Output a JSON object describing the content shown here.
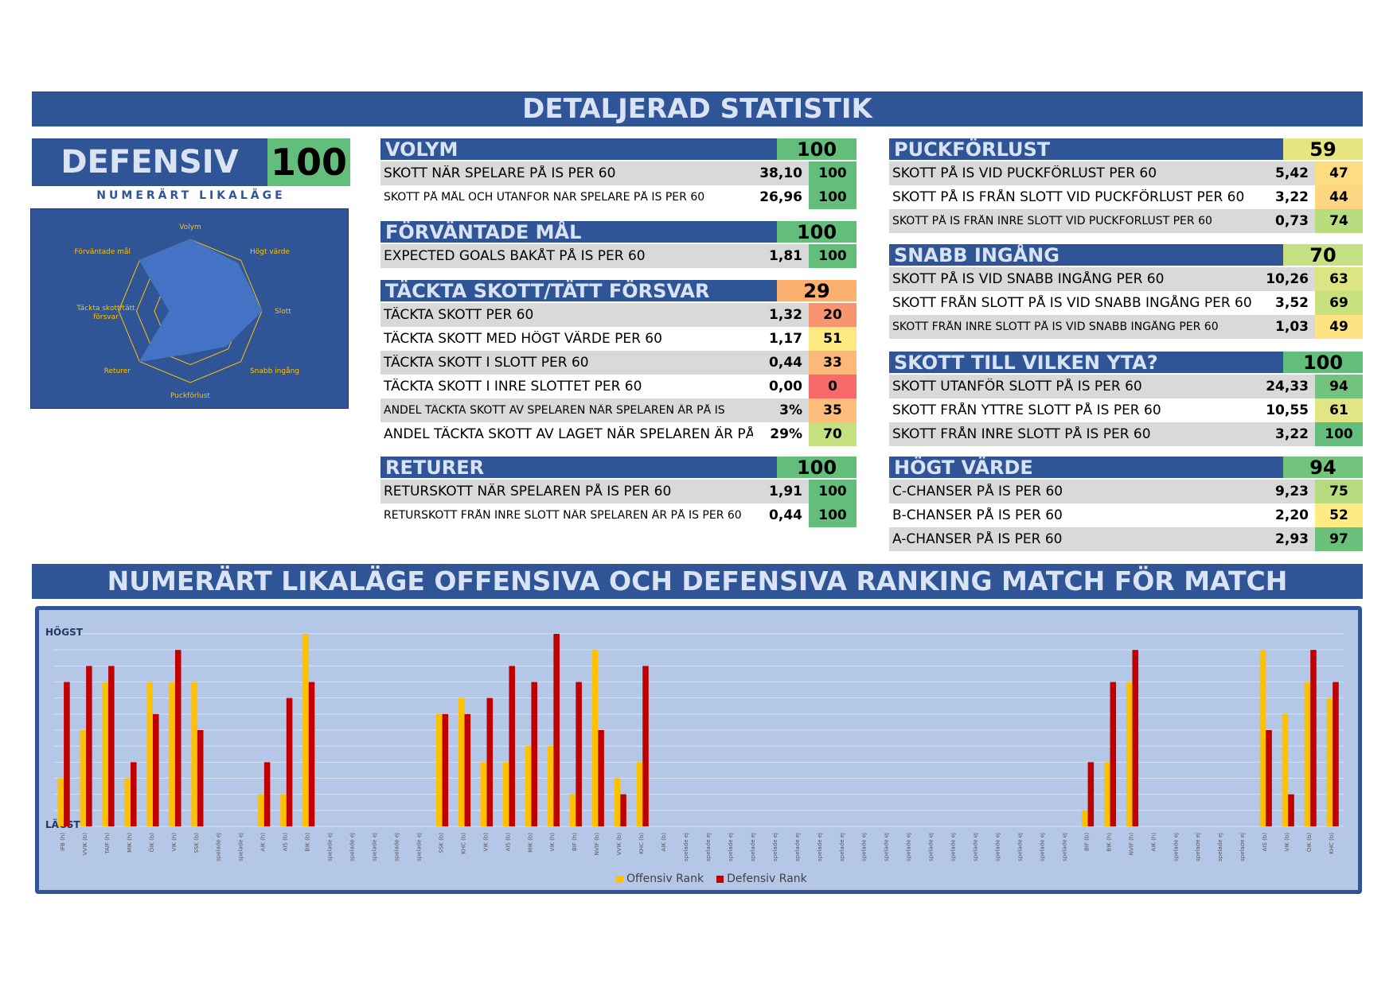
{
  "main_title": "DETALJERAD STATISTIK",
  "defensiv": {
    "label": "DEFENSIV",
    "score": "100",
    "subtitle": "NUMERÄRT LIKALÄGE"
  },
  "radar": {
    "axes": [
      "Volym",
      "Högt värde",
      "Slott",
      "Snabb ingång",
      "Puckförlust",
      "Returer",
      "Täckta skott/tätt försvar",
      "Förväntade mål"
    ],
    "values": [
      100,
      94,
      100,
      70,
      59,
      100,
      29,
      100
    ]
  },
  "sections_left": [
    {
      "title": "VOLYM",
      "score": "100",
      "score_color": "#63be7b",
      "rows": [
        {
          "label": "SKOTT NÄR SPELARE PÅ IS PER 60",
          "value": "38,10",
          "score": "100",
          "color": "#63be7b",
          "small": false
        },
        {
          "label": "SKOTT PÅ MÅL OCH UTANFÖR NÄR SPELARE PÅ IS PER 60",
          "value": "26,96",
          "score": "100",
          "color": "#63be7b",
          "small": true
        }
      ]
    },
    {
      "title": "FÖRVÄNTADE MÅL",
      "score": "100",
      "score_color": "#63be7b",
      "rows": [
        {
          "label": "EXPECTED GOALS BAKÅT PÅ IS PER 60",
          "value": "1,81",
          "score": "100",
          "color": "#63be7b",
          "small": false
        }
      ]
    },
    {
      "title": "TÄCKTA SKOTT/TÄTT FÖRSVAR",
      "score": "29",
      "score_color": "#fbb06f",
      "rows": [
        {
          "label": "TÄCKTA SKOTT PER 60",
          "value": "1,32",
          "score": "20",
          "color": "#f99470",
          "small": false
        },
        {
          "label": "TÄCKTA SKOTT MED HÖGT VÄRDE PER 60",
          "value": "1,17",
          "score": "51",
          "color": "#fee983",
          "small": false
        },
        {
          "label": "TÄCKTA SKOTT I SLOTT PER 60",
          "value": "0,44",
          "score": "33",
          "color": "#fbb878",
          "small": false
        },
        {
          "label": "TÄCKTA SKOTT I INRE SLOTTET PER 60",
          "value": "0,00",
          "score": "0",
          "color": "#f8696b",
          "small": false
        },
        {
          "label": "ANDEL TÄCKTA SKOTT AV SPELAREN NÄR SPELAREN ÄR PÅ IS",
          "value": "3%",
          "score": "35",
          "color": "#fcbd7b",
          "small": true
        },
        {
          "label": "ANDEL TÄCKTA SKOTT AV LAGET NÄR SPELAREN ÄR PÅ IS",
          "value": "29%",
          "score": "70",
          "color": "#c4e080",
          "small": false
        }
      ]
    },
    {
      "title": "RETURER",
      "score": "100",
      "score_color": "#63be7b",
      "rows": [
        {
          "label": "RETURSKOTT NÄR SPELAREN PÅ IS PER 60",
          "value": "1,91",
          "score": "100",
          "color": "#63be7b",
          "small": false
        },
        {
          "label": "RETURSKOTT FRÅN INRE SLOTT NÄR SPELAREN ÄR PÅ IS PER 60",
          "value": "0,44",
          "score": "100",
          "color": "#63be7b",
          "small": true
        }
      ]
    }
  ],
  "sections_right": [
    {
      "title": "PUCKFÖRLUST",
      "score": "59",
      "score_color": "#e7e582",
      "rows": [
        {
          "label": "SKOTT PÅ IS VID PUCKFÖRLUST PER 60",
          "value": "5,42",
          "score": "47",
          "color": "#fedd81",
          "small": false
        },
        {
          "label": "SKOTT PÅ IS FRÅN SLOTT VID PUCKFÖRLUST PER 60",
          "value": "3,22",
          "score": "44",
          "color": "#fed580",
          "small": false
        },
        {
          "label": "SKOTT PÅ IS FRÅN INRE SLOTT VID PUCKFÖRLUST PER 60",
          "value": "0,73",
          "score": "74",
          "color": "#b9dc7f",
          "small": true
        }
      ]
    },
    {
      "title": "SNABB INGÅNG",
      "score": "70",
      "score_color": "#c4e080",
      "rows": [
        {
          "label": "SKOTT PÅ IS VID SNABB INGÅNG PER 60",
          "value": "10,26",
          "score": "63",
          "color": "#dde482",
          "small": false
        },
        {
          "label": "SKOTT FRÅN SLOTT PÅ IS VID SNABB INGÅNG PER 60",
          "value": "3,52",
          "score": "69",
          "color": "#c8e17f",
          "small": false
        },
        {
          "label": "SKOTT FRÅN INRE SLOTT PÅ IS VID SNABB INGÅNG PER 60",
          "value": "1,03",
          "score": "49",
          "color": "#fee382",
          "small": true
        }
      ]
    },
    {
      "title": "SKOTT TILL VILKEN YTA?",
      "score": "100",
      "score_color": "#63be7b",
      "rows": [
        {
          "label": "SKOTT UTANFÖR SLOTT PÅ IS PER 60",
          "value": "24,33",
          "score": "94",
          "color": "#74c37c",
          "small": false
        },
        {
          "label": "SKOTT FRÅN YTTRE SLOTT PÅ IS PER 60",
          "value": "10,55",
          "score": "61",
          "color": "#e2e583",
          "small": false
        },
        {
          "label": "SKOTT FRÅN INRE SLOTT PÅ IS PER 60",
          "value": "3,22",
          "score": "100",
          "color": "#63be7b",
          "small": false
        }
      ]
    },
    {
      "title": "HÖGT VÄRDE",
      "score": "94",
      "score_color": "#74c37c",
      "rows": [
        {
          "label": "C-CHANSER PÅ IS PER 60",
          "value": "9,23",
          "score": "75",
          "color": "#b6db7f",
          "small": false
        },
        {
          "label": "B-CHANSER PÅ IS PER 60",
          "value": "2,20",
          "score": "52",
          "color": "#feeb84",
          "small": false
        },
        {
          "label": "A-CHANSER PÅ IS PER 60",
          "value": "2,93",
          "score": "97",
          "color": "#6bc17c",
          "small": false
        }
      ]
    }
  ],
  "chart_title": "NUMERÄRT LIKALÄGE OFFENSIVA OCH DEFENSIVA RANKING MATCH FÖR MATCH",
  "chart_data": {
    "type": "bar",
    "y_top_label": "HÖGST",
    "y_bottom_label": "LÄGST",
    "ylim": [
      0,
      12
    ],
    "grid": true,
    "legend_position": "bottom",
    "categories": [
      "IFB (h)",
      "VVIK (b)",
      "TAIF (h)",
      "MIK (h)",
      "ÖIK (b)",
      "VIK (h)",
      "SSK (b)",
      "spelade ej",
      "spelade ej",
      "AIK (h)",
      "AIS (b)",
      "BIK (b)",
      "spelade ej",
      "spelade ej",
      "spelade ej",
      "spelade ej",
      "spelade ej",
      "SSK (b)",
      "KHC (b)",
      "VIK (b)",
      "AIS (b)",
      "MIK (b)",
      "VIK (h)",
      "BIF (h)",
      "NVIF (b)",
      "VVIK (b)",
      "KHC (b)",
      "AIK (b)",
      "spelade ej",
      "spelade ej",
      "spelade ej",
      "spelade ej",
      "spelade ej",
      "spelade ej",
      "spelade ej",
      "spelade ej",
      "spelade ej",
      "spelade ej",
      "spelade ej",
      "spelade ej",
      "spelade ej",
      "spelade ej",
      "spelade ej",
      "spelade ej",
      "spelade ej",
      "spelade ej",
      "BIF (b)",
      "BIK (h)",
      "NVIF (h)",
      "AIK (h)",
      "spelade ej",
      "spelade ej",
      "spelade ej",
      "spelade ej",
      "AIS (b)",
      "VIK (b)",
      "ÖIK (b)",
      "KHC (b)"
    ],
    "series": [
      {
        "name": "Offensiv Rank",
        "color": "#ffc000",
        "values": [
          3,
          6,
          9,
          3,
          9,
          9,
          9,
          0,
          0,
          2,
          2,
          12,
          0,
          0,
          0,
          0,
          0,
          7,
          8,
          4,
          4,
          5,
          5,
          2,
          11,
          3,
          4,
          0,
          0,
          0,
          0,
          0,
          0,
          0,
          0,
          0,
          0,
          0,
          0,
          0,
          0,
          0,
          0,
          0,
          0,
          0,
          1,
          4,
          9,
          0,
          0,
          0,
          0,
          0,
          11,
          7,
          9,
          8
        ]
      },
      {
        "name": "Defensiv Rank",
        "color": "#c00000",
        "values": [
          9,
          10,
          10,
          4,
          7,
          11,
          6,
          0,
          0,
          4,
          8,
          9,
          0,
          0,
          0,
          0,
          0,
          7,
          7,
          8,
          10,
          9,
          12,
          9,
          6,
          2,
          10,
          0,
          0,
          0,
          0,
          0,
          0,
          0,
          0,
          0,
          0,
          0,
          0,
          0,
          0,
          0,
          0,
          0,
          0,
          0,
          4,
          9,
          11,
          0,
          0,
          0,
          0,
          0,
          6,
          2,
          11,
          9
        ]
      }
    ]
  }
}
